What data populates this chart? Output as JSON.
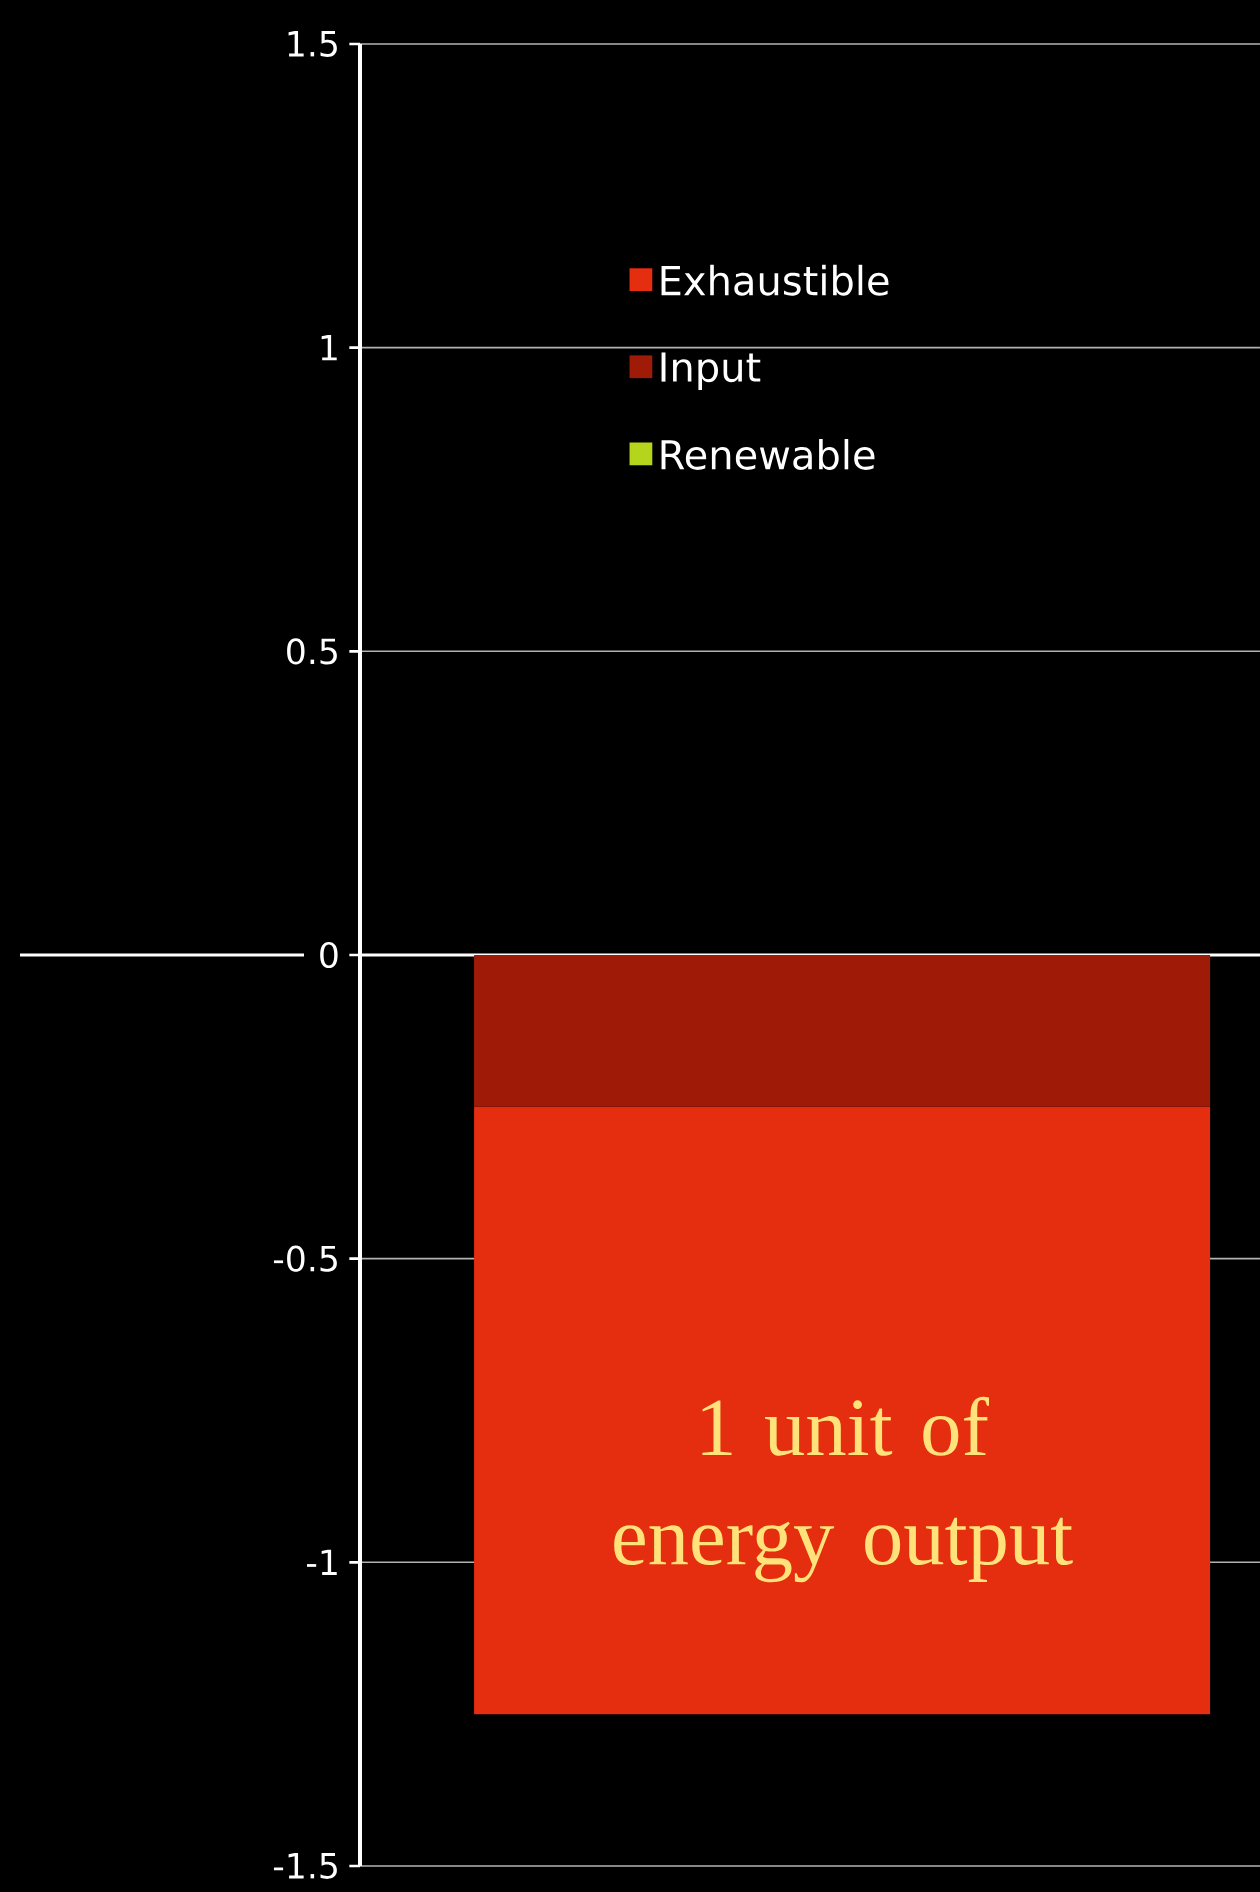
{
  "chart_data": {
    "type": "bar",
    "stacked": true,
    "categories": [
      null
    ],
    "series": [
      {
        "name": "Input",
        "color": "#a01a08",
        "values": [
          -0.25
        ]
      },
      {
        "name": "Exhaustible",
        "color": "#e52d10",
        "values": [
          -1.0
        ]
      },
      {
        "name": "Renewable",
        "color": "#b5d41c",
        "values": [
          0
        ]
      }
    ],
    "ylim": [
      -1.5,
      1.5
    ],
    "yticks": [
      -1.5,
      -1,
      -0.5,
      0,
      0.5,
      1,
      1.5
    ],
    "grid": "y",
    "legend": "top left",
    "ref_lines": [
      {
        "axis": "y",
        "value": 0,
        "color": "#ffffff"
      }
    ],
    "annotations": [
      "1 unit of energy output"
    ]
  }
}
